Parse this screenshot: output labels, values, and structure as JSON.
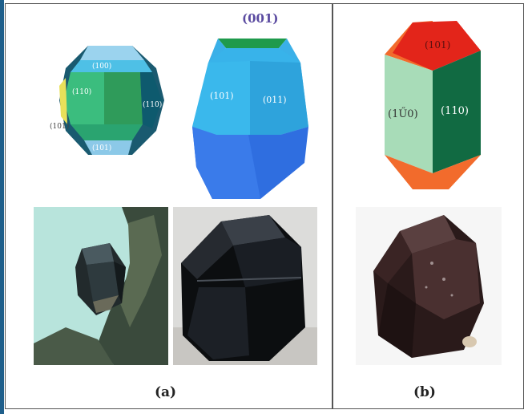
{
  "panel_a": {
    "caption": "(a)",
    "model_left": {
      "face_labels": [
        "(100)",
        "(110)",
        "(110)",
        "(101)",
        "(101)"
      ]
    },
    "model_right": {
      "top_face": "(001)",
      "face_left": "(101)",
      "face_right": "(011)"
    }
  },
  "panel_b": {
    "caption": "(b)",
    "model": {
      "top_face": "(101)",
      "face_left": "(1Ű0)",
      "face_right": "(110)"
    }
  },
  "colors": {
    "frame": "#555555",
    "left_stripe": "#1f5f8b",
    "model_blue": "#2f6ee0",
    "model_cyan": "#35b4ea",
    "model_green": "#2fa86a",
    "model_dark_green": "#0f6a44",
    "model_red": "#e02a1a",
    "model_orange": "#f56a2a",
    "model_pale_green": "#a6d9b5"
  }
}
